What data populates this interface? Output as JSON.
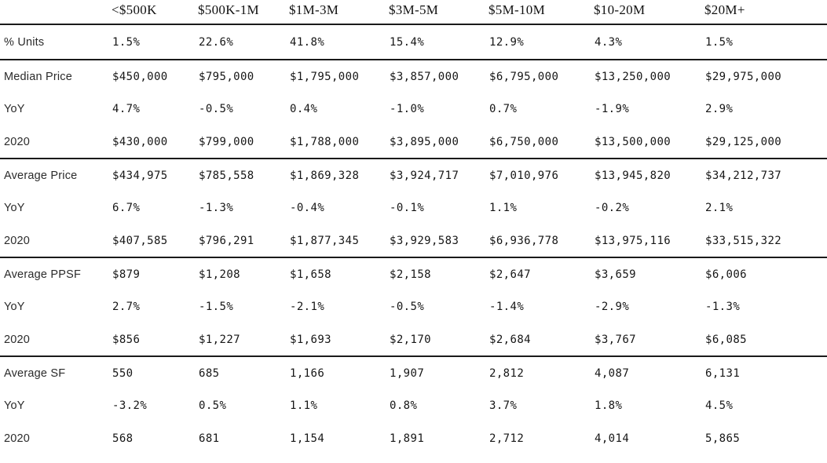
{
  "chart_data": {
    "type": "table",
    "corner_label": "",
    "columns": [
      "<$500K",
      "$500K-1M",
      "$1M-3M",
      "$3M-5M",
      "$5M-10M",
      "$10-20M",
      "$20M+"
    ],
    "sections": [
      {
        "name": "units",
        "rows": [
          {
            "label": "% Units",
            "values": [
              "1.5%",
              "22.6%",
              "41.8%",
              "15.4%",
              "12.9%",
              "4.3%",
              "1.5%"
            ]
          }
        ]
      },
      {
        "name": "median-price",
        "rows": [
          {
            "label": "Median Price",
            "values": [
              "$450,000",
              "$795,000",
              "$1,795,000",
              "$3,857,000",
              "$6,795,000",
              "$13,250,000",
              "$29,975,000"
            ]
          },
          {
            "label": "YoY",
            "values": [
              "4.7%",
              "-0.5%",
              "0.4%",
              "-1.0%",
              "0.7%",
              "-1.9%",
              "2.9%"
            ]
          },
          {
            "label": "2020",
            "values": [
              "$430,000",
              "$799,000",
              "$1,788,000",
              "$3,895,000",
              "$6,750,000",
              "$13,500,000",
              "$29,125,000"
            ]
          }
        ]
      },
      {
        "name": "average-price",
        "rows": [
          {
            "label": "Average Price",
            "values": [
              "$434,975",
              "$785,558",
              "$1,869,328",
              "$3,924,717",
              "$7,010,976",
              "$13,945,820",
              "$34,212,737"
            ]
          },
          {
            "label": "YoY",
            "values": [
              "6.7%",
              "-1.3%",
              "-0.4%",
              "-0.1%",
              "1.1%",
              "-0.2%",
              "2.1%"
            ]
          },
          {
            "label": "2020",
            "values": [
              "$407,585",
              "$796,291",
              "$1,877,345",
              "$3,929,583",
              "$6,936,778",
              "$13,975,116",
              "$33,515,322"
            ]
          }
        ]
      },
      {
        "name": "average-ppsf",
        "rows": [
          {
            "label": "Average PPSF",
            "values": [
              "$879",
              "$1,208",
              "$1,658",
              "$2,158",
              "$2,647",
              "$3,659",
              "$6,006"
            ]
          },
          {
            "label": "YoY",
            "values": [
              "2.7%",
              "-1.5%",
              "-2.1%",
              "-0.5%",
              "-1.4%",
              "-2.9%",
              "-1.3%"
            ]
          },
          {
            "label": "2020",
            "values": [
              "$856",
              "$1,227",
              "$1,693",
              "$2,170",
              "$2,684",
              "$3,767",
              "$6,085"
            ]
          }
        ]
      },
      {
        "name": "average-sf",
        "rows": [
          {
            "label": "Average SF",
            "values": [
              "550",
              "685",
              "1,166",
              "1,907",
              "2,812",
              "4,087",
              "6,131"
            ]
          },
          {
            "label": "YoY",
            "values": [
              "-3.2%",
              "0.5%",
              "1.1%",
              "0.8%",
              "3.7%",
              "1.8%",
              "4.5%"
            ]
          },
          {
            "label": "2020",
            "values": [
              "568",
              "681",
              "1,154",
              "1,891",
              "2,712",
              "4,014",
              "5,865"
            ]
          }
        ]
      }
    ],
    "layout": {
      "legend": "none",
      "grid": "horizontal-section-rules-only"
    },
    "colors": {
      "background": "#ffffff",
      "rule": "#1a1a1a",
      "header_text": "#111111",
      "label_text": "#2b2b2b",
      "value_text": "#161616"
    }
  }
}
